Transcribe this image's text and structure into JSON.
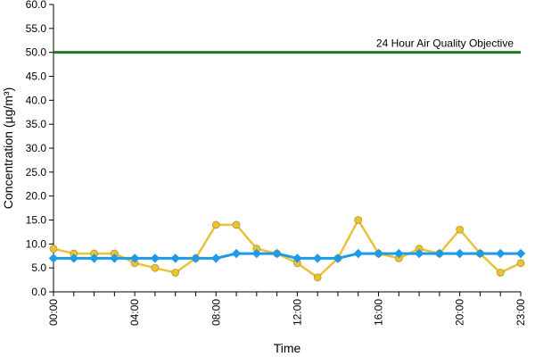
{
  "chart_data": {
    "type": "line",
    "title": "",
    "xlabel": "Time",
    "ylabel": "Concentration (µg/m³)",
    "x": [
      "00:00",
      "01:00",
      "02:00",
      "03:00",
      "04:00",
      "05:00",
      "06:00",
      "07:00",
      "08:00",
      "09:00",
      "10:00",
      "11:00",
      "12:00",
      "13:00",
      "14:00",
      "15:00",
      "16:00",
      "17:00",
      "18:00",
      "19:00",
      "20:00",
      "21:00",
      "22:00",
      "23:00"
    ],
    "x_tick_labels": [
      "00:00",
      "04:00",
      "08:00",
      "12:00",
      "16:00",
      "20:00",
      "23:00"
    ],
    "ylim": [
      0,
      60
    ],
    "y_tick_labels": [
      "0.0",
      "5.0",
      "10.0",
      "15.0",
      "20.0",
      "25.0",
      "30.0",
      "35.0",
      "40.0",
      "45.0",
      "50.0",
      "55.0",
      "60.0"
    ],
    "grid": false,
    "series": [
      {
        "color": "#e8c23a",
        "marker": "circle",
        "values": [
          9,
          8,
          8,
          8,
          6,
          5,
          4,
          7,
          14,
          14,
          9,
          8,
          6,
          3,
          7,
          15,
          8,
          7,
          9,
          8,
          13,
          8,
          4,
          6
        ]
      },
      {
        "color": "#1e9be8",
        "marker": "diamond",
        "values": [
          7,
          7,
          7,
          7,
          7,
          7,
          7,
          7,
          7,
          8,
          8,
          8,
          7,
          7,
          7,
          8,
          8,
          8,
          8,
          8,
          8,
          8,
          8,
          8
        ]
      }
    ],
    "reference_line": {
      "value": 50,
      "label": "24 Hour Air Quality Objective",
      "color": "#1f7a1f"
    }
  }
}
